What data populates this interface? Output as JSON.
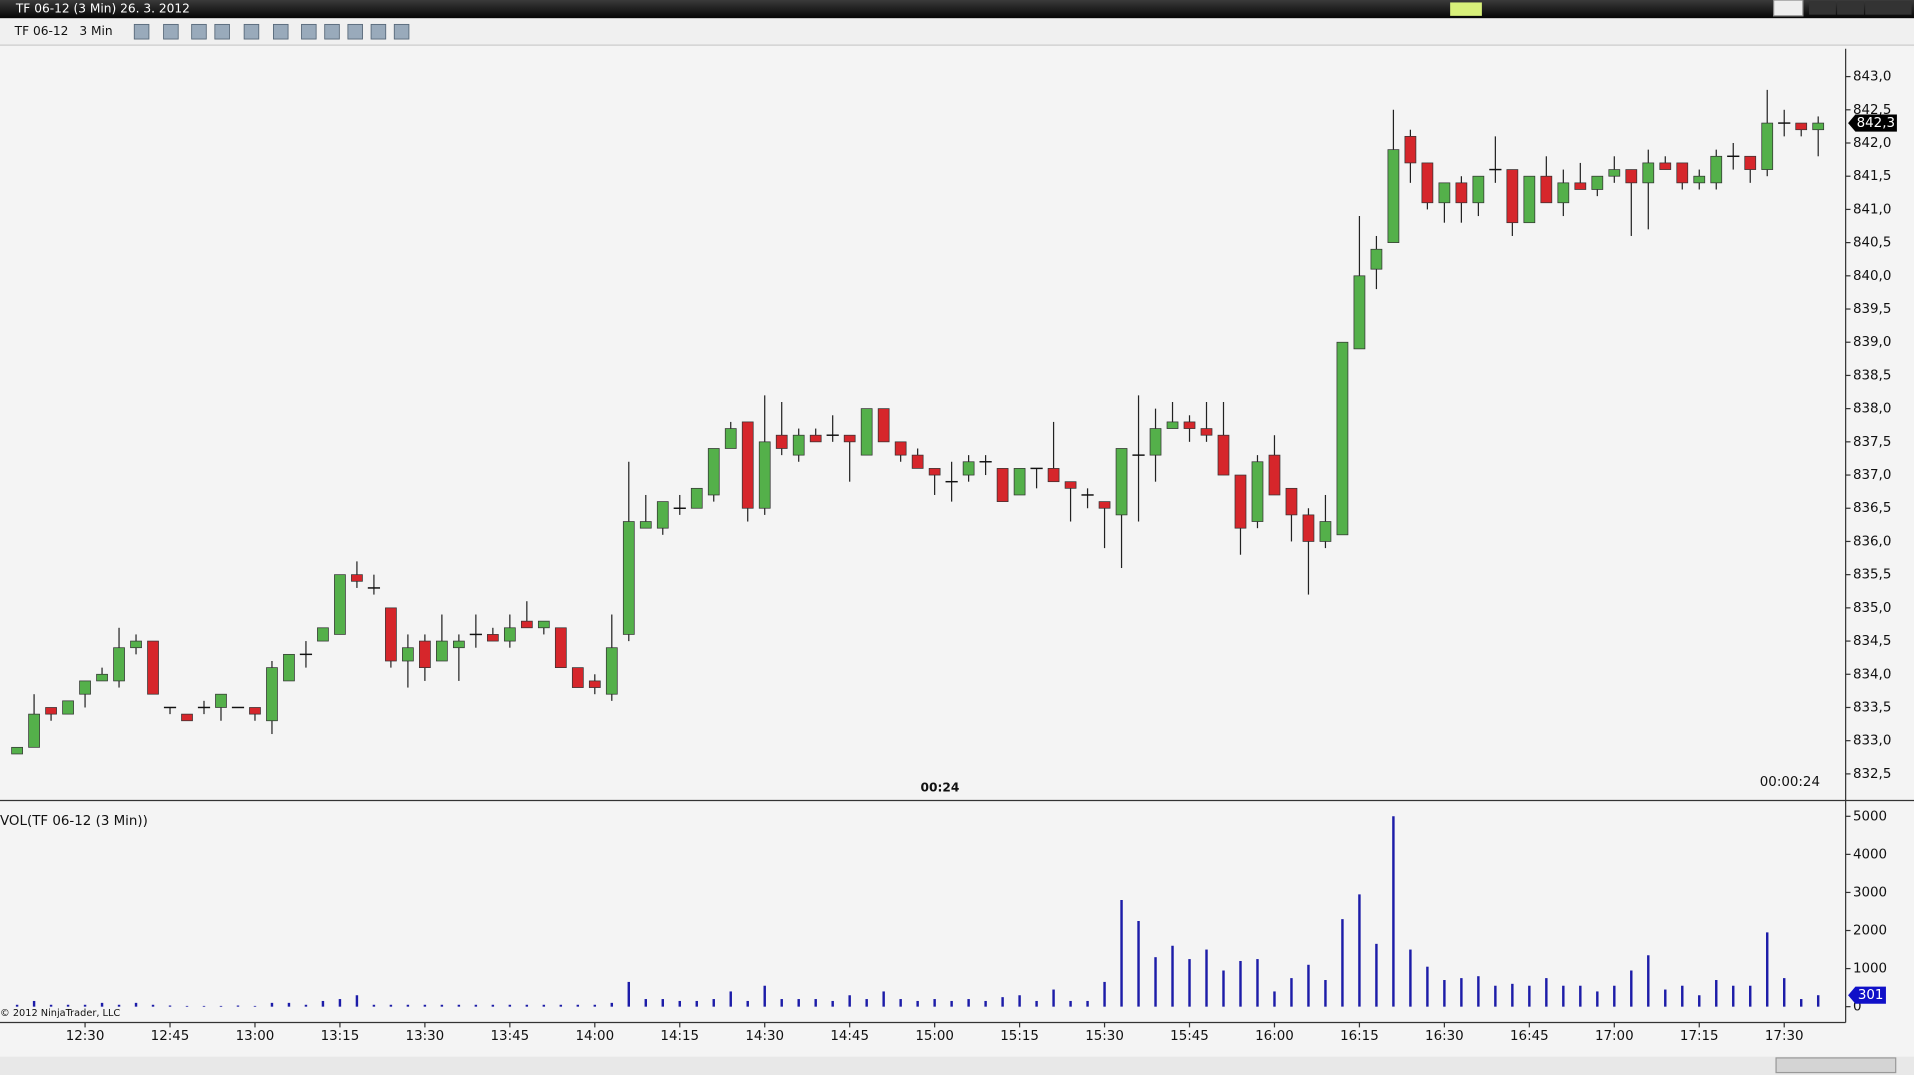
{
  "window": {
    "title": "TF 06-12 (3 Min)  26. 3. 2012",
    "instrument": "TF 06-12",
    "period": "3 Min"
  },
  "chart_data": [
    {
      "type": "candlestick",
      "up_color": "#54b04a",
      "down_color": "#d6262b",
      "ylim": [
        832.1,
        843.4
      ],
      "yticks": [
        {
          "value": 832.5,
          "label": "832,5"
        },
        {
          "value": 833.0,
          "label": "833,0"
        },
        {
          "value": 833.5,
          "label": "833,5"
        },
        {
          "value": 834.0,
          "label": "834,0"
        },
        {
          "value": 834.5,
          "label": "834,5"
        },
        {
          "value": 835.0,
          "label": "835,0"
        },
        {
          "value": 835.5,
          "label": "835,5"
        },
        {
          "value": 836.0,
          "label": "836,0"
        },
        {
          "value": 836.5,
          "label": "836,5"
        },
        {
          "value": 837.0,
          "label": "837,0"
        },
        {
          "value": 837.5,
          "label": "837,5"
        },
        {
          "value": 838.0,
          "label": "838,0"
        },
        {
          "value": 838.5,
          "label": "838,5"
        },
        {
          "value": 839.0,
          "label": "839,0"
        },
        {
          "value": 839.5,
          "label": "839,5"
        },
        {
          "value": 840.0,
          "label": "840,0"
        },
        {
          "value": 840.5,
          "label": "840,5"
        },
        {
          "value": 841.0,
          "label": "841,0"
        },
        {
          "value": 841.5,
          "label": "841,5"
        },
        {
          "value": 842.0,
          "label": "842,0"
        },
        {
          "value": 842.5,
          "label": "842,5"
        },
        {
          "value": 843.0,
          "label": "843,0"
        }
      ],
      "open": [
        832.8,
        832.9,
        833.5,
        833.4,
        833.7,
        833.9,
        833.9,
        834.4,
        834.5,
        833.5,
        833.4,
        833.5,
        833.5,
        833.5,
        833.5,
        833.3,
        833.9,
        834.3,
        834.5,
        834.6,
        835.5,
        835.3,
        835.0,
        834.2,
        834.5,
        834.2,
        834.4,
        834.6,
        834.6,
        834.5,
        834.8,
        834.7,
        834.7,
        834.1,
        833.9,
        833.7,
        834.6,
        836.2,
        836.2,
        836.5,
        836.5,
        836.7,
        837.4,
        837.8,
        836.5,
        837.6,
        837.3,
        837.6,
        837.6,
        837.6,
        837.3,
        838.0,
        837.5,
        837.3,
        837.1,
        836.9,
        837.0,
        837.2,
        837.1,
        836.7,
        837.1,
        837.1,
        836.9,
        836.7,
        836.6,
        836.4,
        837.3,
        837.3,
        837.7,
        837.8,
        837.7,
        837.6,
        837.0,
        836.3,
        837.3,
        836.8,
        836.4,
        836.0,
        836.1,
        838.9,
        840.1,
        840.5,
        842.1,
        841.7,
        841.1,
        841.4,
        841.1,
        841.6,
        841.6,
        840.8,
        841.5,
        841.1,
        841.4,
        841.3,
        841.5,
        841.6,
        841.4,
        841.7,
        841.7,
        841.4,
        841.4,
        841.8,
        841.8,
        841.6,
        842.3,
        842.3,
        842.2
      ],
      "high": [
        832.9,
        833.7,
        833.5,
        833.6,
        833.9,
        834.1,
        834.7,
        834.6,
        834.5,
        833.5,
        833.4,
        833.6,
        833.7,
        833.5,
        833.5,
        834.2,
        834.3,
        834.5,
        834.7,
        835.5,
        835.7,
        835.5,
        835.0,
        834.6,
        834.6,
        834.9,
        834.6,
        834.9,
        834.7,
        834.9,
        835.1,
        834.8,
        834.7,
        834.1,
        834.0,
        834.9,
        837.2,
        836.7,
        836.6,
        836.7,
        836.8,
        837.4,
        837.8,
        837.8,
        838.2,
        838.1,
        837.7,
        837.7,
        837.9,
        837.6,
        838.0,
        838.0,
        837.5,
        837.4,
        837.1,
        837.2,
        837.3,
        837.3,
        837.1,
        837.1,
        837.1,
        837.8,
        836.9,
        836.8,
        836.6,
        837.4,
        838.2,
        838.0,
        838.1,
        837.9,
        838.1,
        838.1,
        837.0,
        837.3,
        837.6,
        836.8,
        836.5,
        836.7,
        839.0,
        840.9,
        840.6,
        842.5,
        842.2,
        841.7,
        841.4,
        841.5,
        841.5,
        842.1,
        841.6,
        841.5,
        841.8,
        841.6,
        841.7,
        841.5,
        841.8,
        841.6,
        841.9,
        841.8,
        841.7,
        841.6,
        841.9,
        842.0,
        841.8,
        842.8,
        842.5,
        842.3,
        842.4
      ],
      "low": [
        832.8,
        832.9,
        833.3,
        833.4,
        833.5,
        833.9,
        833.8,
        834.3,
        833.7,
        833.4,
        833.3,
        833.4,
        833.3,
        833.5,
        833.3,
        833.1,
        833.9,
        834.1,
        834.5,
        834.6,
        835.3,
        835.2,
        834.1,
        833.8,
        833.9,
        834.2,
        833.9,
        834.4,
        834.5,
        834.4,
        834.7,
        834.6,
        834.1,
        833.8,
        833.7,
        833.6,
        834.5,
        836.2,
        836.1,
        836.4,
        836.5,
        836.6,
        837.4,
        836.3,
        836.4,
        837.3,
        837.2,
        837.5,
        837.5,
        836.9,
        837.3,
        837.5,
        837.2,
        837.1,
        836.7,
        836.6,
        836.9,
        837.0,
        836.6,
        836.7,
        836.8,
        836.9,
        836.3,
        836.5,
        835.9,
        835.6,
        836.3,
        836.9,
        837.7,
        837.5,
        837.5,
        837.0,
        835.8,
        836.2,
        836.7,
        836.0,
        835.2,
        835.9,
        836.1,
        838.9,
        839.8,
        840.5,
        841.4,
        841.0,
        840.8,
        840.8,
        840.9,
        841.4,
        840.6,
        840.8,
        841.1,
        840.9,
        841.3,
        841.2,
        841.4,
        840.6,
        840.7,
        841.6,
        841.3,
        841.3,
        841.3,
        841.6,
        841.4,
        841.5,
        842.1,
        842.1,
        841.8
      ],
      "close": [
        832.9,
        833.4,
        833.4,
        833.6,
        833.9,
        834.0,
        834.4,
        834.5,
        833.7,
        833.5,
        833.3,
        833.5,
        833.7,
        833.5,
        833.4,
        834.1,
        834.3,
        834.3,
        834.7,
        835.5,
        835.4,
        835.3,
        834.2,
        834.4,
        834.1,
        834.5,
        834.5,
        834.6,
        834.5,
        834.7,
        834.7,
        834.8,
        834.1,
        833.8,
        833.8,
        834.4,
        836.3,
        836.3,
        836.6,
        836.5,
        836.8,
        837.4,
        837.7,
        836.5,
        837.5,
        837.4,
        837.6,
        837.5,
        837.6,
        837.5,
        838.0,
        837.5,
        837.3,
        837.1,
        837.0,
        836.9,
        837.2,
        837.2,
        836.6,
        837.1,
        837.1,
        836.9,
        836.8,
        836.7,
        836.5,
        837.4,
        837.3,
        837.7,
        837.8,
        837.7,
        837.6,
        837.0,
        836.2,
        837.2,
        836.7,
        836.4,
        836.0,
        836.3,
        839.0,
        840.0,
        840.4,
        841.9,
        841.7,
        841.1,
        841.4,
        841.1,
        841.5,
        841.6,
        840.8,
        841.5,
        841.1,
        841.4,
        841.3,
        841.5,
        841.6,
        841.4,
        841.7,
        841.6,
        841.4,
        841.5,
        841.8,
        841.8,
        841.6,
        842.3,
        842.3,
        842.2,
        842.3
      ],
      "last_price": {
        "value": 842.3,
        "label": "842,3"
      },
      "annotations": [
        "00:24",
        "00:00:24"
      ]
    },
    {
      "type": "bar",
      "title": "VOL(TF 06-12 (3 Min))",
      "color": "#1c1ca8",
      "ylim": [
        0,
        5400
      ],
      "yticks": [
        0,
        1000,
        2000,
        3000,
        4000,
        5000
      ],
      "categories": [
        null,
        null,
        null,
        null,
        "12:30",
        null,
        null,
        null,
        null,
        "12:45",
        null,
        null,
        null,
        null,
        "13:00",
        null,
        null,
        null,
        null,
        "13:15",
        null,
        null,
        null,
        null,
        "13:30",
        null,
        null,
        null,
        null,
        "13:45",
        null,
        null,
        null,
        null,
        "14:00",
        null,
        null,
        null,
        null,
        "14:15",
        null,
        null,
        null,
        null,
        "14:30",
        null,
        null,
        null,
        null,
        "14:45",
        null,
        null,
        null,
        null,
        "15:00",
        null,
        null,
        null,
        null,
        "15:15",
        null,
        null,
        null,
        null,
        "15:30",
        null,
        null,
        null,
        null,
        "15:45",
        null,
        null,
        null,
        null,
        "16:00",
        null,
        null,
        null,
        null,
        "16:15",
        null,
        null,
        null,
        null,
        "16:30",
        null,
        null,
        null,
        null,
        "16:45",
        null,
        null,
        null,
        null,
        "17:00",
        null,
        null,
        null,
        null,
        "17:15",
        null,
        null,
        null,
        null,
        "17:30",
        null,
        null
      ],
      "values": [
        50,
        150,
        50,
        50,
        50,
        100,
        50,
        100,
        50,
        30,
        20,
        20,
        20,
        30,
        20,
        100,
        100,
        50,
        150,
        200,
        300,
        50,
        50,
        50,
        50,
        50,
        50,
        50,
        50,
        50,
        50,
        50,
        50,
        50,
        50,
        100,
        650,
        200,
        200,
        150,
        150,
        200,
        400,
        150,
        550,
        200,
        200,
        200,
        150,
        300,
        200,
        400,
        200,
        150,
        200,
        150,
        200,
        150,
        250,
        300,
        150,
        450,
        150,
        150,
        650,
        2800,
        2250,
        1300,
        1600,
        1250,
        1500,
        950,
        1200,
        1250,
        400,
        750,
        1100,
        700,
        2300,
        2950,
        1650,
        5000,
        1500,
        1050,
        700,
        750,
        800,
        550,
        600,
        550,
        750,
        550,
        550,
        400,
        550,
        950,
        1350,
        450,
        550,
        300,
        700,
        550,
        550,
        1950,
        750,
        200,
        301
      ],
      "last_value": 301,
      "copyright": "© 2012 NinjaTrader, LLC"
    }
  ]
}
